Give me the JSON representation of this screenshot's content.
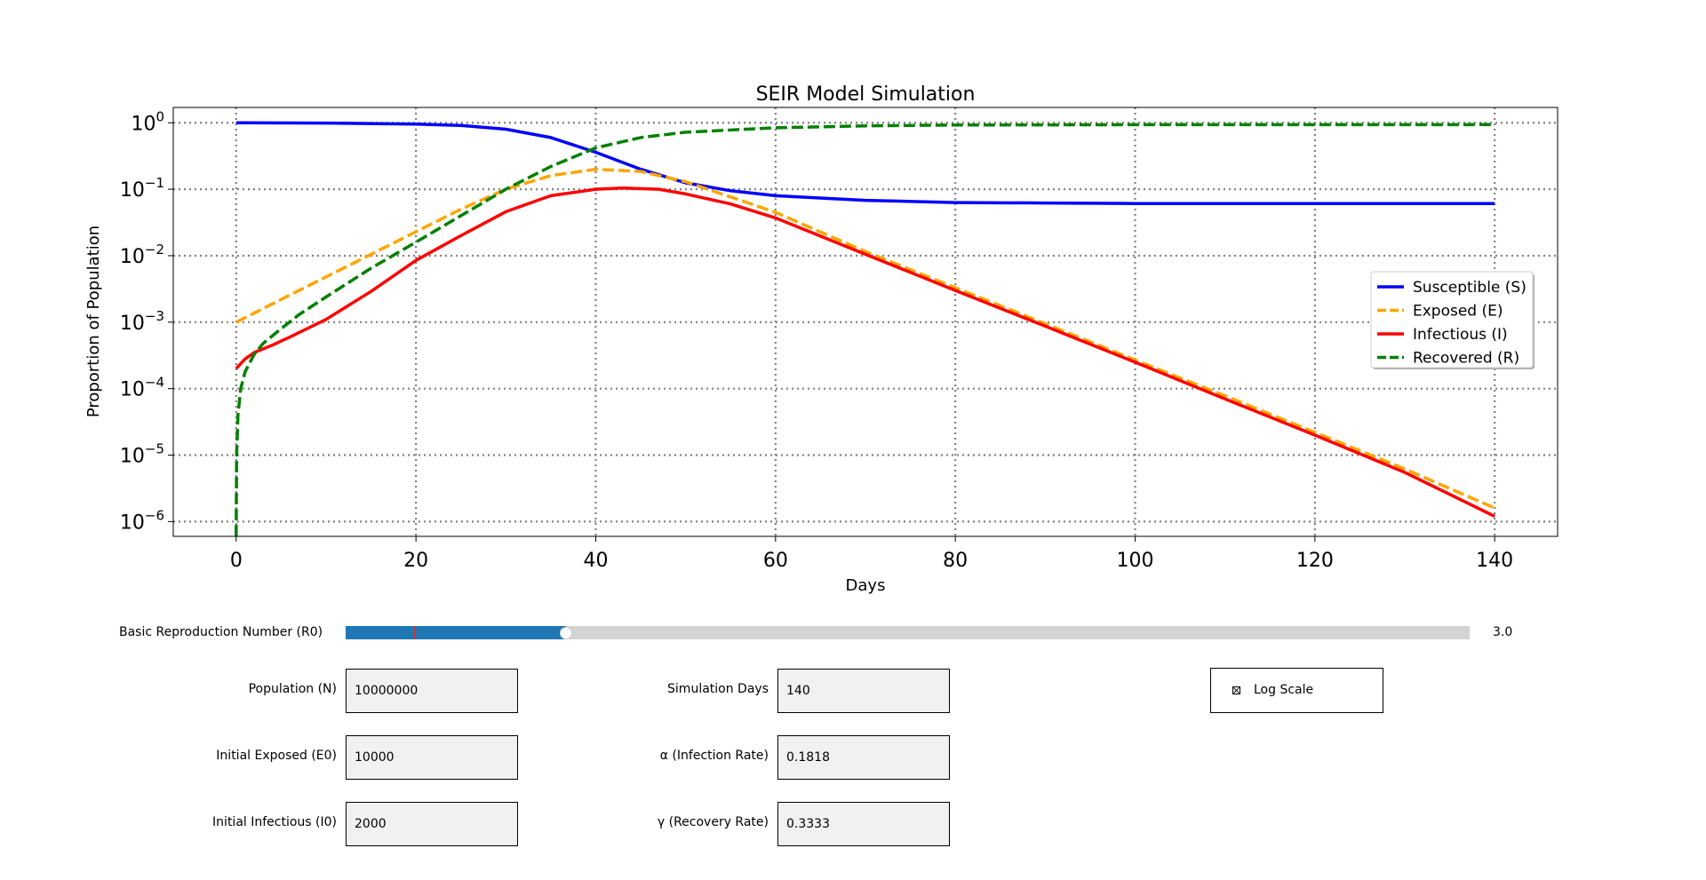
{
  "chart_data": {
    "type": "line",
    "title": "SEIR Model Simulation",
    "xlabel": "Days",
    "ylabel": "Proportion of Population",
    "yscale": "log",
    "grid": true,
    "legend_position": "center-right",
    "xlim": [
      -7,
      147
    ],
    "ylim": [
      6e-07,
      1.7
    ],
    "x_ticks": [
      0,
      20,
      40,
      60,
      80,
      100,
      120,
      140
    ],
    "x_tick_labels": [
      "0",
      "20",
      "40",
      "60",
      "80",
      "100",
      "120",
      "140"
    ],
    "y_ticks": [
      1,
      0.1,
      0.01,
      0.001,
      0.0001,
      1e-05,
      1e-06
    ],
    "y_tick_exponents": [
      "0",
      "−1",
      "−2",
      "−3",
      "−4",
      "−5",
      "−6"
    ],
    "y_tick_base": "10",
    "series": [
      {
        "name": "Susceptible (S)",
        "color": "#0000ff",
        "dash": "solid",
        "x": [
          0,
          10,
          20,
          25,
          30,
          35,
          40,
          45,
          50,
          55,
          60,
          70,
          80,
          90,
          100,
          120,
          140
        ],
        "y": [
          0.998,
          0.99,
          0.955,
          0.91,
          0.8,
          0.6,
          0.36,
          0.2,
          0.125,
          0.095,
          0.08,
          0.068,
          0.063,
          0.062,
          0.061,
          0.061,
          0.061
        ]
      },
      {
        "name": "Exposed (E)",
        "color": "#ffa500",
        "dash": "dashed",
        "x": [
          0,
          5,
          10,
          15,
          20,
          25,
          30,
          35,
          40,
          45,
          50,
          60,
          70,
          80,
          90,
          100,
          110,
          120,
          130,
          140
        ],
        "y": [
          0.001,
          0.0022,
          0.0048,
          0.0105,
          0.023,
          0.05,
          0.1,
          0.16,
          0.2,
          0.185,
          0.13,
          0.045,
          0.0115,
          0.0033,
          0.00095,
          0.00027,
          7.8e-05,
          2.2e-05,
          6.2e-06,
          1.6e-06
        ]
      },
      {
        "name": "Infectious (I)",
        "color": "#ff0000",
        "dash": "solid",
        "x": [
          0,
          1,
          2,
          4,
          6,
          10,
          15,
          20,
          25,
          30,
          35,
          40,
          43,
          47,
          50,
          55,
          60,
          70,
          80,
          90,
          100,
          110,
          120,
          130,
          140
        ],
        "y": [
          0.0002,
          0.00028,
          0.00035,
          0.00045,
          0.0006,
          0.0011,
          0.0029,
          0.0085,
          0.02,
          0.046,
          0.08,
          0.1,
          0.104,
          0.1,
          0.085,
          0.06,
          0.037,
          0.0105,
          0.003,
          0.00087,
          0.00025,
          7e-05,
          2e-05,
          5.5e-06,
          1.2e-06
        ]
      },
      {
        "name": "Recovered (R)",
        "color": "#008000",
        "dash": "dashed",
        "x": [
          0,
          0.05,
          0.2,
          0.5,
          1,
          2,
          3,
          5,
          7,
          10,
          15,
          20,
          25,
          30,
          35,
          40,
          45,
          50,
          60,
          70,
          80,
          100,
          120,
          140
        ],
        "y": [
          6e-07,
          1e-05,
          4e-05,
          0.0001,
          0.00018,
          0.00033,
          0.00048,
          0.0008,
          0.0013,
          0.0024,
          0.0065,
          0.016,
          0.04,
          0.1,
          0.22,
          0.42,
          0.6,
          0.72,
          0.84,
          0.9,
          0.925,
          0.935,
          0.937,
          0.938
        ]
      }
    ]
  },
  "controls": {
    "slider": {
      "label": "Basic Reproduction Number (R0)",
      "value_text": "3.0",
      "fill_fraction": 0.196,
      "mark_fraction": 0.06,
      "fill_color": "#1f77b4",
      "mark_color": "#cc3333"
    },
    "population": {
      "label": "Population (N)",
      "value": "10000000"
    },
    "initial_exposed": {
      "label": "Initial Exposed (E0)",
      "value": "10000"
    },
    "initial_infectious": {
      "label": "Initial Infectious (I0)",
      "value": "2000"
    },
    "simulation_days": {
      "label": "Simulation Days",
      "value": "140"
    },
    "alpha": {
      "label": "α (Infection Rate)",
      "value": "0.1818"
    },
    "gamma": {
      "label": "γ (Recovery Rate)",
      "value": "0.3333"
    },
    "log_scale": {
      "label": "Log Scale",
      "checked": true
    }
  }
}
